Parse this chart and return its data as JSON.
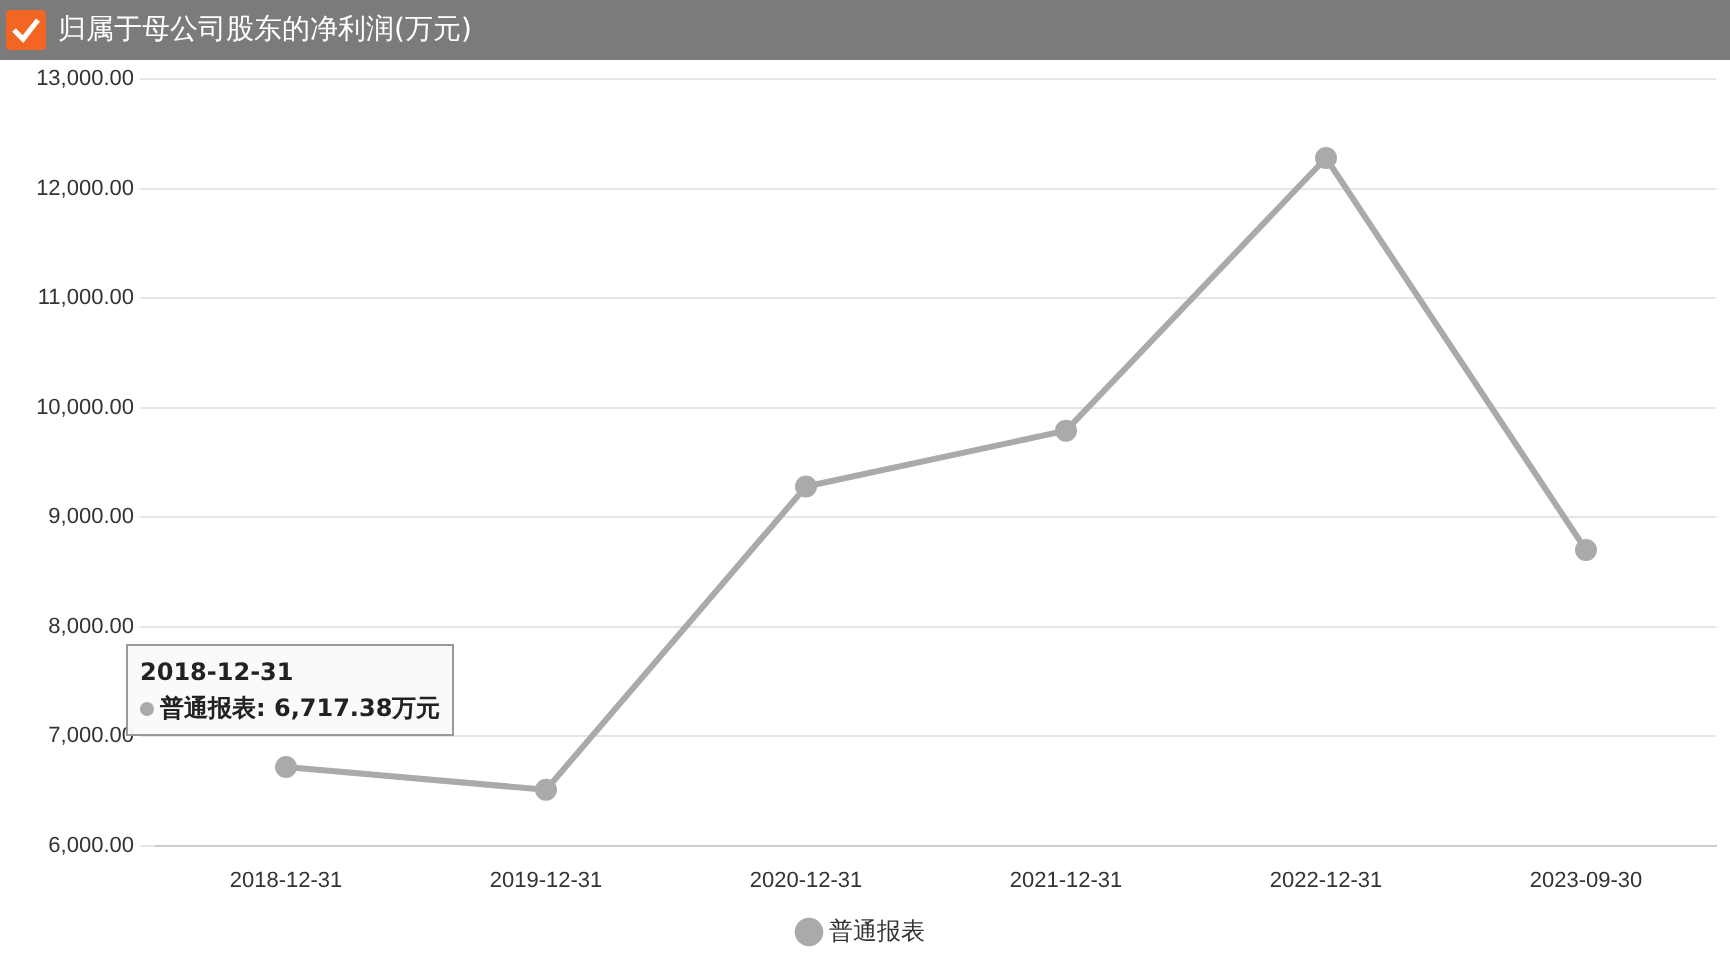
{
  "chart_data": {
    "type": "line",
    "title": "归属于母公司股东的净利润(万元)",
    "categories": [
      "2018-12-31",
      "2019-12-31",
      "2020-12-31",
      "2021-12-31",
      "2022-12-31",
      "2023-09-30"
    ],
    "series": [
      {
        "name": "普通报表",
        "color": "#aaaaaa",
        "values": [
          6717.38,
          6510,
          9280,
          9790,
          12280,
          8700
        ]
      }
    ],
    "ylim": [
      6000,
      13000
    ],
    "yticks": [
      {
        "value": 6000,
        "label": "6,000.00"
      },
      {
        "value": 7000,
        "label": "7,000.00"
      },
      {
        "value": 8000,
        "label": "8,000.00"
      },
      {
        "value": 9000,
        "label": "9,000.00"
      },
      {
        "value": 10000,
        "label": "10,000.00"
      },
      {
        "value": 11000,
        "label": "11,000.00"
      },
      {
        "value": 12000,
        "label": "12,000.00"
      },
      {
        "value": 13000,
        "label": "13,000.00"
      }
    ],
    "grid": "y",
    "legend": "bottom",
    "marker": "circle",
    "line_style": "solid",
    "annotations": [
      "2018-12-31",
      "普通报表: 6,717.38万元"
    ]
  }
}
